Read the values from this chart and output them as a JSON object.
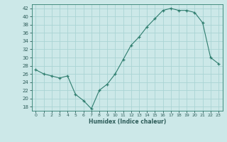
{
  "x": [
    0,
    1,
    2,
    3,
    4,
    5,
    6,
    7,
    8,
    9,
    10,
    11,
    12,
    13,
    14,
    15,
    16,
    17,
    18,
    19,
    20,
    21,
    22,
    23
  ],
  "y": [
    27,
    26,
    25.5,
    25,
    25.5,
    21,
    19.5,
    17.5,
    22,
    23.5,
    26,
    29.5,
    33,
    35,
    37.5,
    39.5,
    41.5,
    42,
    41.5,
    41.5,
    41,
    38.5,
    30,
    28.5
  ],
  "xlabel": "Humidex (Indice chaleur)",
  "ylim": [
    17,
    43
  ],
  "xlim": [
    -0.5,
    23.5
  ],
  "yticks": [
    18,
    20,
    22,
    24,
    26,
    28,
    30,
    32,
    34,
    36,
    38,
    40,
    42
  ],
  "xticks": [
    0,
    1,
    2,
    3,
    4,
    5,
    6,
    7,
    8,
    9,
    10,
    11,
    12,
    13,
    14,
    15,
    16,
    17,
    18,
    19,
    20,
    21,
    22,
    23
  ],
  "line_color": "#2e7d6e",
  "marker": "+",
  "bg_color": "#cce8e8",
  "grid_color": "#aad4d4",
  "label_color": "#2e5d5a",
  "spine_color": "#2e7d6e"
}
